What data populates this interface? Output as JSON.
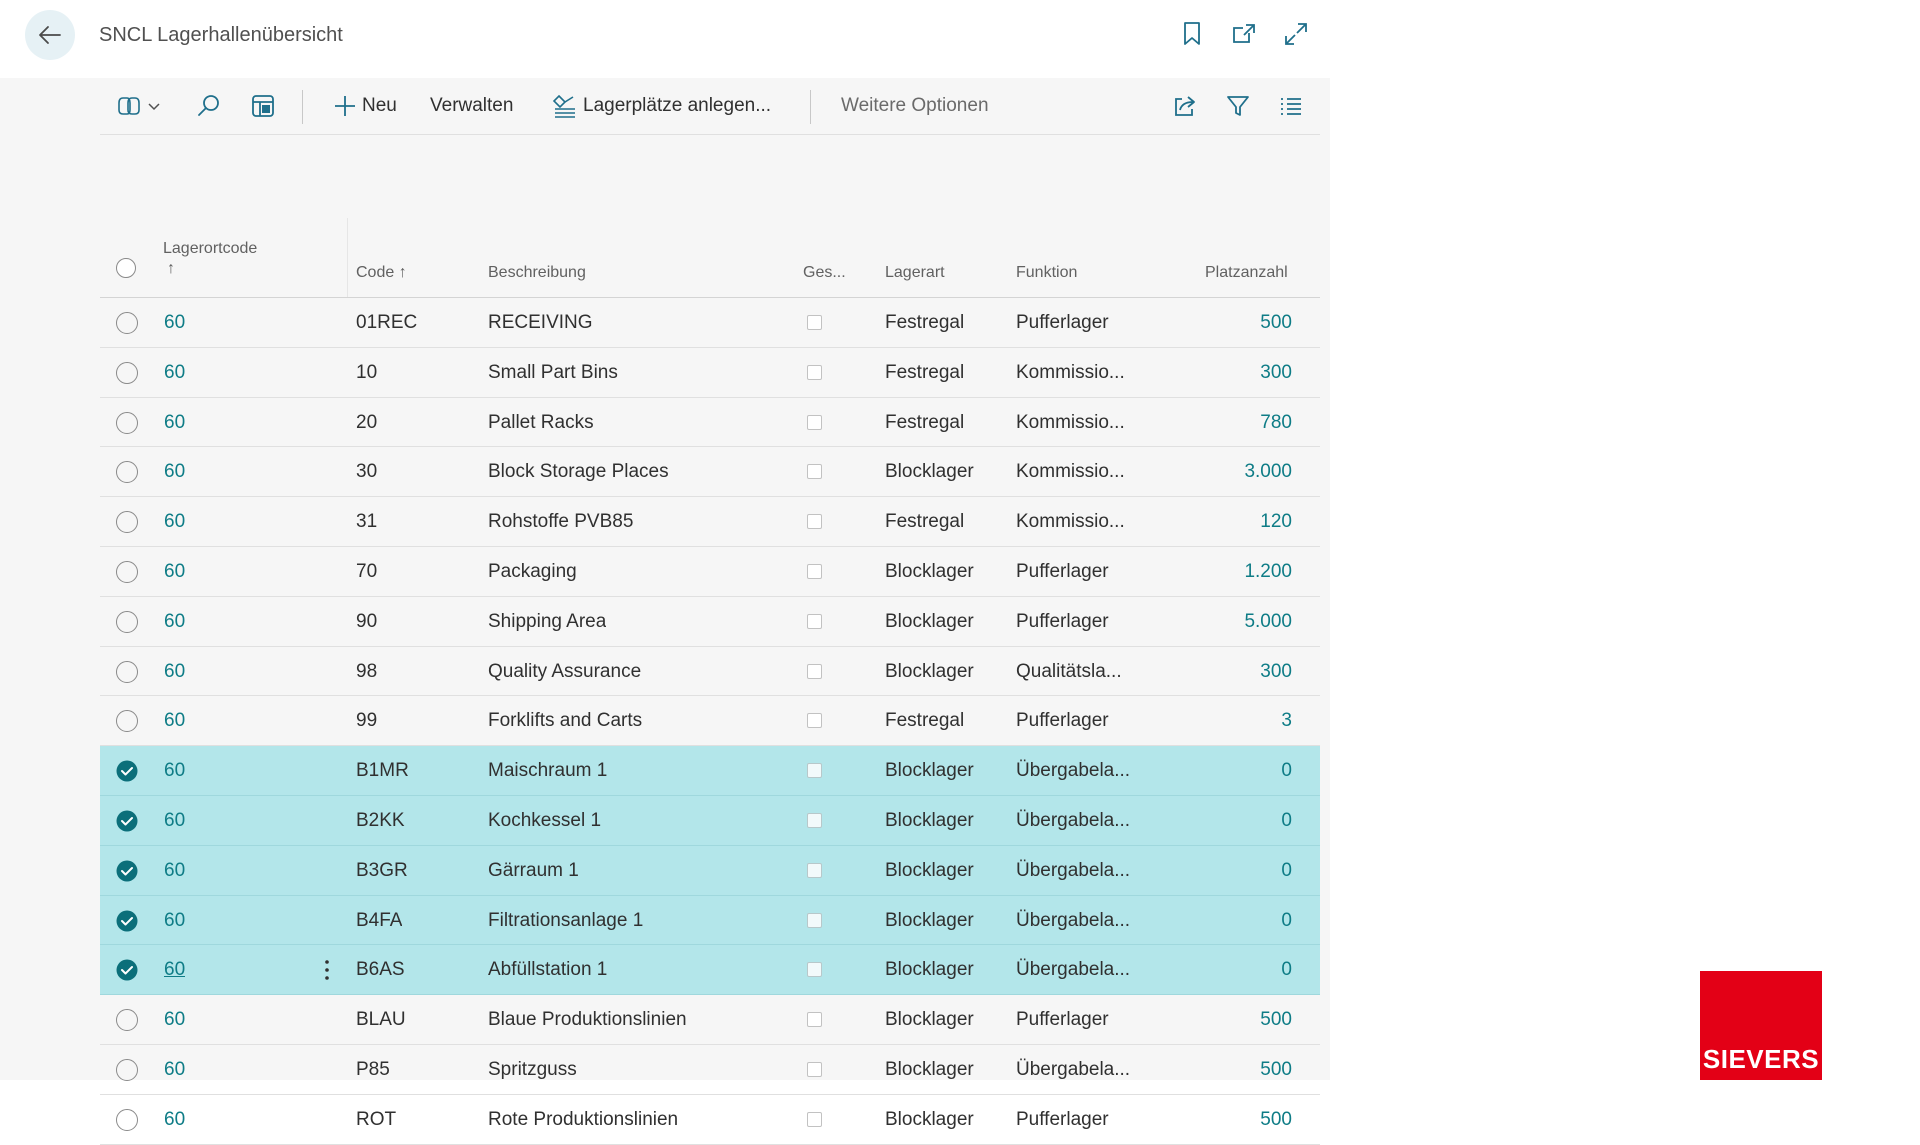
{
  "header": {
    "title": "SNCL Lagerhallenübersicht",
    "icons": [
      "back-arrow-icon",
      "bookmark-icon",
      "open-new-window-icon",
      "expand-icon"
    ]
  },
  "toolbar": {
    "new_label": "Neu",
    "manage_label": "Verwalten",
    "create_bins_label": "Lagerplätze anlegen...",
    "more_options_label": "Weitere Optionen",
    "icons": [
      "copilot-icon",
      "search-icon",
      "layout-icon",
      "share-icon",
      "filter-icon",
      "list-view-icon"
    ]
  },
  "table": {
    "columns": {
      "location_code": "Lagerortcode",
      "location_code_sort": "↑",
      "code": "Code",
      "code_sort": "↑",
      "description": "Beschreibung",
      "blocked": "Ges...",
      "storage_type": "Lagerart",
      "function": "Funktion",
      "bin_count": "Platzanzahl"
    },
    "rows": [
      {
        "location": "60",
        "code": "01REC",
        "description": "RECEIVING",
        "storage_type": "Festregal",
        "function": "Pufferlager",
        "bin_count": "500",
        "selected": false
      },
      {
        "location": "60",
        "code": "10",
        "description": "Small Part Bins",
        "storage_type": "Festregal",
        "function": "Kommissio...",
        "bin_count": "300",
        "selected": false
      },
      {
        "location": "60",
        "code": "20",
        "description": "Pallet Racks",
        "storage_type": "Festregal",
        "function": "Kommissio...",
        "bin_count": "780",
        "selected": false
      },
      {
        "location": "60",
        "code": "30",
        "description": "Block Storage Places",
        "storage_type": "Blocklager",
        "function": "Kommissio...",
        "bin_count": "3.000",
        "selected": false
      },
      {
        "location": "60",
        "code": "31",
        "description": "Rohstoffe PVB85",
        "storage_type": "Festregal",
        "function": "Kommissio...",
        "bin_count": "120",
        "selected": false
      },
      {
        "location": "60",
        "code": "70",
        "description": "Packaging",
        "storage_type": "Blocklager",
        "function": "Pufferlager",
        "bin_count": "1.200",
        "selected": false
      },
      {
        "location": "60",
        "code": "90",
        "description": "Shipping Area",
        "storage_type": "Blocklager",
        "function": "Pufferlager",
        "bin_count": "5.000",
        "selected": false
      },
      {
        "location": "60",
        "code": "98",
        "description": "Quality Assurance",
        "storage_type": "Blocklager",
        "function": "Qualitätsla...",
        "bin_count": "300",
        "selected": false
      },
      {
        "location": "60",
        "code": "99",
        "description": "Forklifts and Carts",
        "storage_type": "Festregal",
        "function": "Pufferlager",
        "bin_count": "3",
        "selected": false
      },
      {
        "location": "60",
        "code": "B1MR",
        "description": "Maischraum 1",
        "storage_type": "Blocklager",
        "function": "Übergabela...",
        "bin_count": "0",
        "selected": true
      },
      {
        "location": "60",
        "code": "B2KK",
        "description": "Kochkessel 1",
        "storage_type": "Blocklager",
        "function": "Übergabela...",
        "bin_count": "0",
        "selected": true
      },
      {
        "location": "60",
        "code": "B3GR",
        "description": "Gärraum 1",
        "storage_type": "Blocklager",
        "function": "Übergabela...",
        "bin_count": "0",
        "selected": true
      },
      {
        "location": "60",
        "code": "B4FA",
        "description": "Filtrationsanlage 1",
        "storage_type": "Blocklager",
        "function": "Übergabela...",
        "bin_count": "0",
        "selected": true
      },
      {
        "location": "60",
        "code": "B6AS",
        "description": "Abfüllstation 1",
        "storage_type": "Blocklager",
        "function": "Übergabela...",
        "bin_count": "0",
        "selected": true,
        "focused": true
      },
      {
        "location": "60",
        "code": "BLAU",
        "description": "Blaue Produktionslinien",
        "storage_type": "Blocklager",
        "function": "Pufferlager",
        "bin_count": "500",
        "selected": false
      },
      {
        "location": "60",
        "code": "P85",
        "description": "Spritzguss",
        "storage_type": "Blocklager",
        "function": "Übergabela...",
        "bin_count": "500",
        "selected": false
      },
      {
        "location": "60",
        "code": "ROT",
        "description": "Rote Produktionslinien",
        "storage_type": "Blocklager",
        "function": "Pufferlager",
        "bin_count": "500",
        "selected": false
      }
    ]
  },
  "logo": {
    "text": "SIEVERS",
    "color": "#e30016"
  },
  "colors": {
    "accent": "#0e7c86",
    "selected_row": "#b3e6ea",
    "panel_bg": "#f6f6f6"
  }
}
